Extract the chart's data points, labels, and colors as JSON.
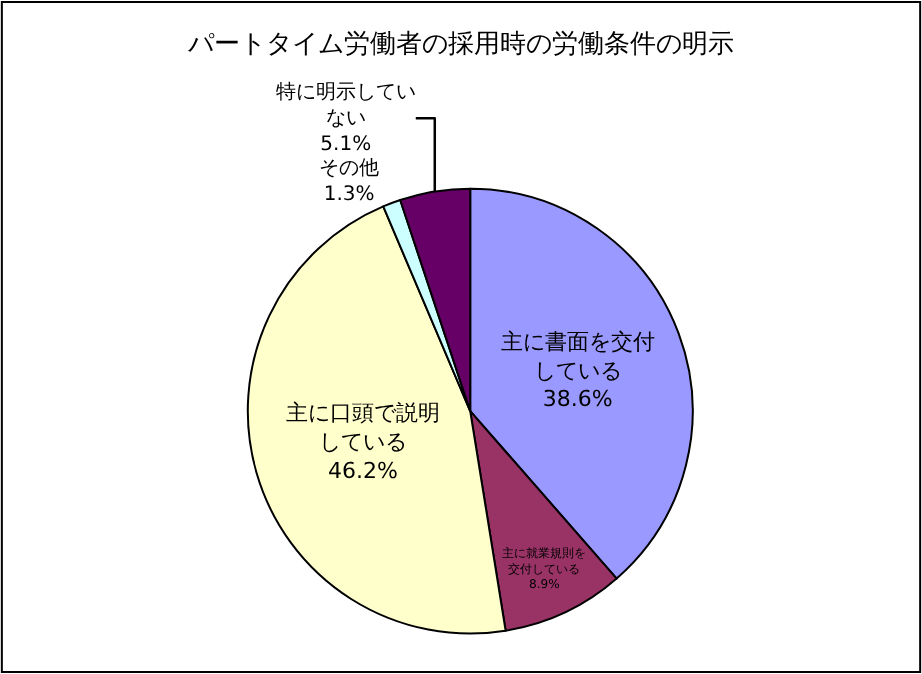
{
  "chart_data": {
    "type": "pie",
    "title": "パートタイム労働者の採用時の労働条件の明示",
    "categories": [
      "主に書面を交付している",
      "主に就業規則を交付している",
      "主に口頭で説明している",
      "その他",
      "特に明示していない"
    ],
    "values": [
      38.6,
      8.9,
      46.2,
      1.3,
      5.1
    ],
    "value_labels": [
      "38.6%",
      "8.9%",
      "46.2%",
      "1.3%",
      "5.1%"
    ],
    "colors": [
      "#9999ff",
      "#993366",
      "#ffffcc",
      "#ccffff",
      "#660066"
    ],
    "legend": false
  }
}
